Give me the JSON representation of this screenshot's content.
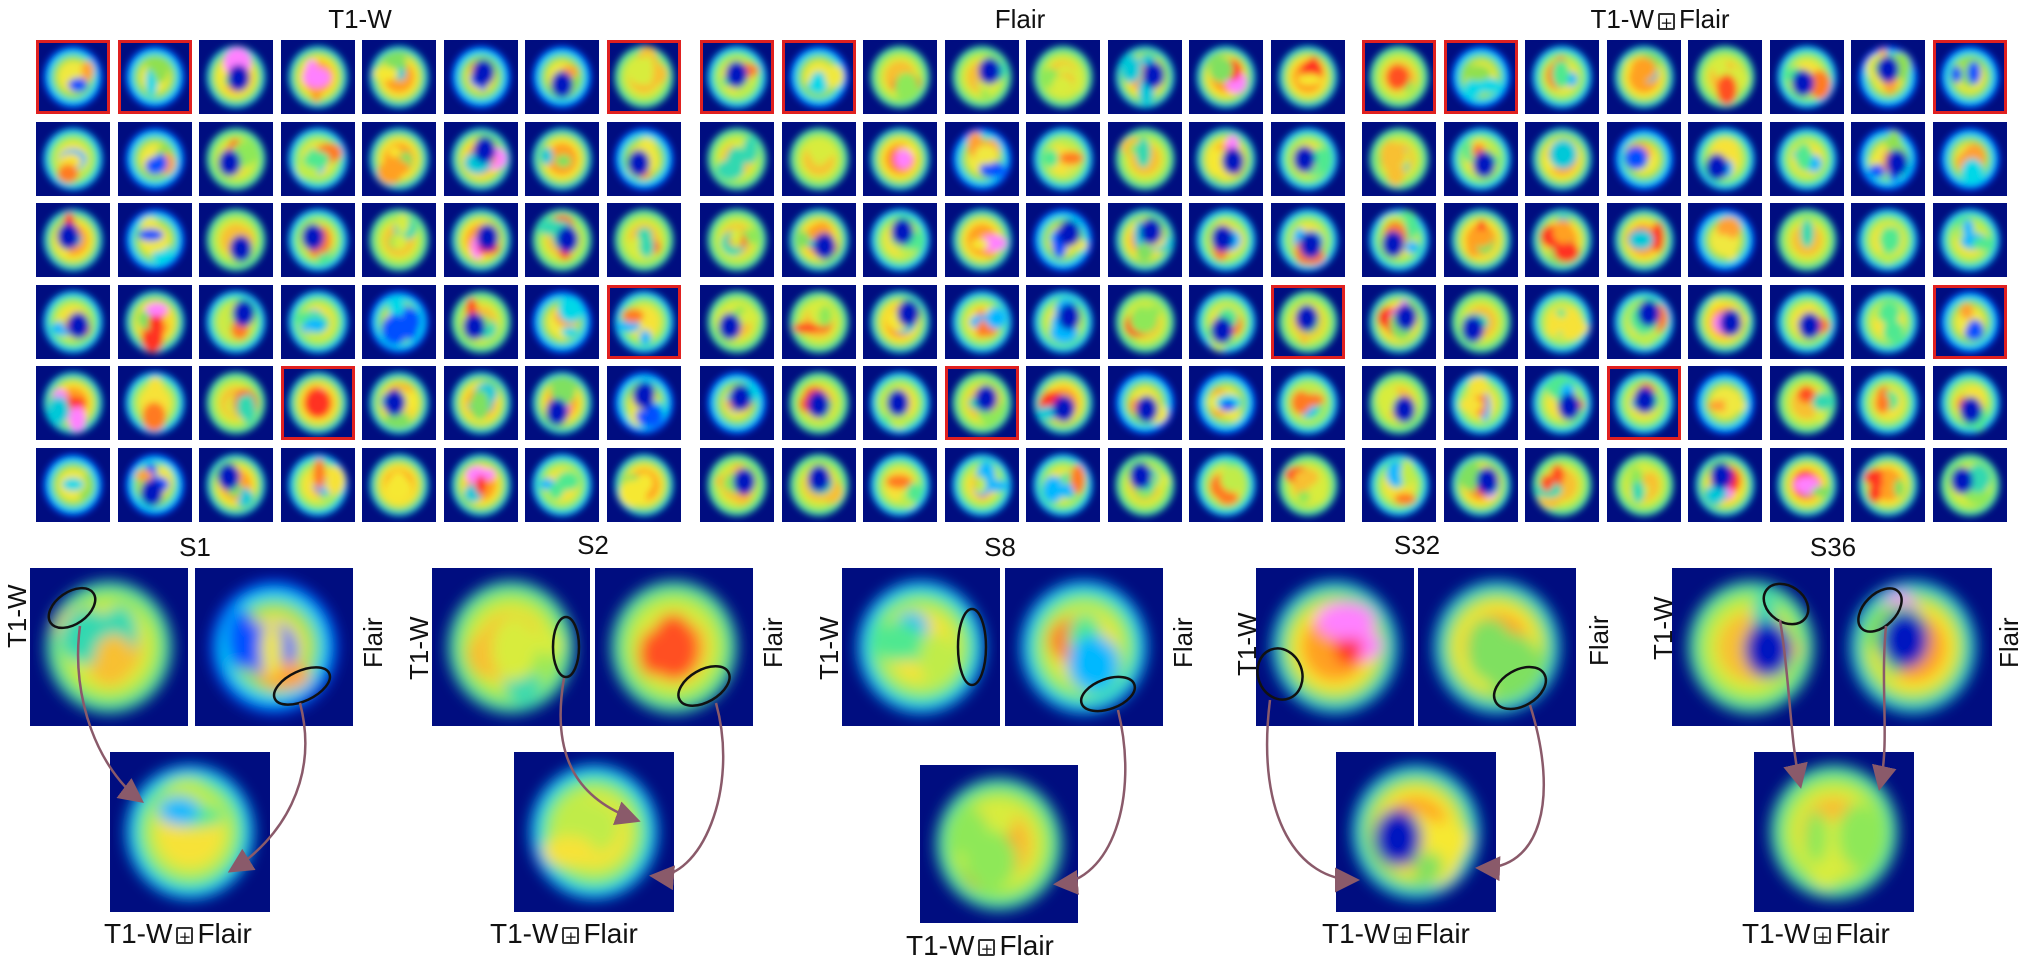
{
  "grids": [
    {
      "title": "T1-W",
      "highlighted": [
        0,
        1,
        7,
        31,
        35
      ]
    },
    {
      "title": "Flair",
      "highlighted": [
        0,
        1,
        31,
        35
      ]
    },
    {
      "title_part1": "T1-W",
      "title_part2": "Flair",
      "highlighted": [
        0,
        1,
        7,
        31,
        35
      ]
    }
  ],
  "plus_symbol": "+",
  "cases": [
    {
      "label": "S1",
      "left_label": "T1-W",
      "right_label": "Flair",
      "caption_part1": "T1-W",
      "caption_part2": "Flair"
    },
    {
      "label": "S2",
      "left_label": "T1-W",
      "right_label": "Flair",
      "caption_part1": "T1-W",
      "caption_part2": "Flair"
    },
    {
      "label": "S8",
      "left_label": "T1-W",
      "right_label": "Flair",
      "caption_part1": "T1-W",
      "caption_part2": "Flair"
    },
    {
      "label": "S32",
      "left_label": "T1-W",
      "right_label": "Flair",
      "caption_part1": "T1-W",
      "caption_part2": "Flair"
    },
    {
      "label": "S36",
      "left_label": "T1-W",
      "right_label": "Flair",
      "caption_part1": "T1-W",
      "caption_part2": "Flair"
    }
  ],
  "colors": {
    "background": "#000d80",
    "highlight": "#e02020",
    "arrow": "#8a5a6a",
    "ellipse": "#111111"
  }
}
